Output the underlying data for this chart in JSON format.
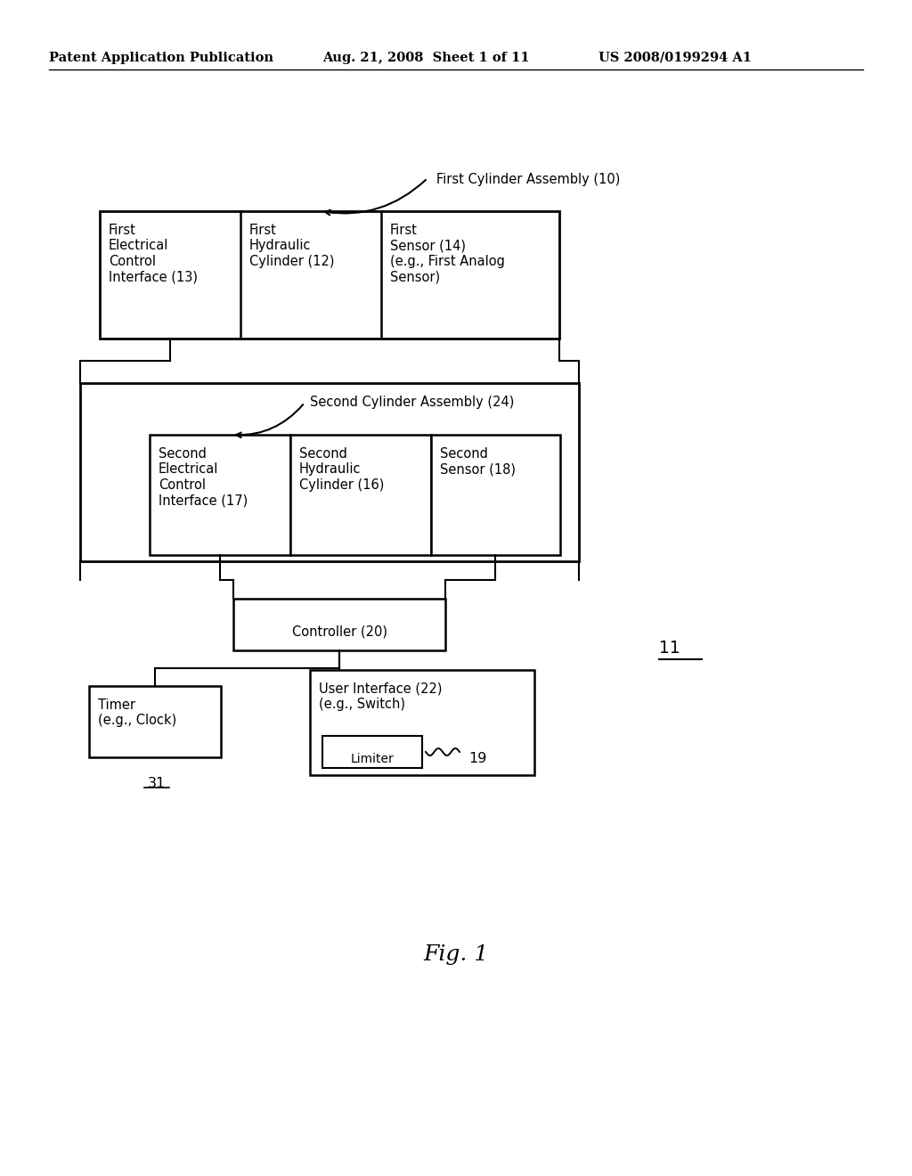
{
  "bg_color": "#ffffff",
  "header_left": "Patent Application Publication",
  "header_mid": "Aug. 21, 2008  Sheet 1 of 11",
  "header_right": "US 2008/0199294 A1",
  "fig_label": "Fig. 1",
  "ref_11": "11",
  "first_assembly_label": "First Cylinder Assembly (10)",
  "second_assembly_label": "Second Cylinder Assembly (24)",
  "box1_text": "First\nElectrical\nControl\nInterface (13)",
  "box2_text": "First\nHydraulic\nCylinder (12)",
  "box3_text": "First\nSensor (14)\n(e.g., First Analog\nSensor)",
  "box4_text": "Second\nElectrical\nControl\nInterface (17)",
  "box5_text": "Second\nHydraulic\nCylinder (16)",
  "box6_text": "Second\nSensor (18)",
  "controller_text": "Controller (20)",
  "timer_text": "Timer\n(e.g., Clock)",
  "ui_text": "User Interface (22)\n(e.g., Switch)",
  "limiter_text": "Limiter",
  "ref_31": "31",
  "ref_19": "19",
  "line_color": "#000000",
  "text_color": "#000000",
  "font_size": 10.5,
  "header_font_size": 10.5,
  "fig_font_size": 18
}
